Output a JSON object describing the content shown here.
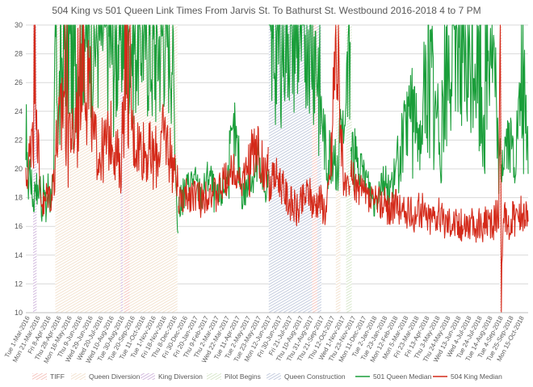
{
  "chart_data": {
    "type": "line",
    "title": "504 King vs 501 Queen Link Times From Jarvis St. To Bathurst St. Westbound 2016-2018 4 to 7 PM",
    "xlabel": "",
    "ylabel": "",
    "ylim": [
      10,
      30
    ],
    "yticks": [
      10,
      12,
      14,
      16,
      18,
      20,
      22,
      24,
      26,
      28,
      30
    ],
    "x_range": [
      "2016-03-01",
      "2018-10-31"
    ],
    "x_tick_labels": [
      "Tue 1-Mar-2016",
      "Mon 21-Mar-2016",
      "Fri 8-Apr-2016",
      "Thu 28-Apr-2016",
      "Mon 16-May-2016",
      "Thu 9-Jun-2016",
      "Wed 29-Jun-2016",
      "Wed 20-Jul-2016",
      "Wed 10-Aug-2016",
      "Tue 30-Aug-2016",
      "Tue 20-Sep-2016",
      "Tue 11-Oct-2016",
      "Tue 1-Nov-2016",
      "Fri 18-Nov-2016",
      "Thu 8-Dec-2016",
      "Fri 30-Dec-2016",
      "Fri 20-Jan-2017",
      "Thu 9-Feb-2017",
      "Thu 2-Mar-2017",
      "Wed 22-Mar-2017",
      "Tue 11-Apr-2017",
      "Tue 2-May-2017",
      "Tue 23-May-2017",
      "Mon 12-Jun-2017",
      "Fri 30-Jun-2017",
      "Fri 21-Jul-2017",
      "Thu 10-Aug-2017",
      "Thu 31-Aug-2017",
      "Thu 21-Sep-2017",
      "Thu 12-Oct-2017",
      "Wed 1-Nov-2017",
      "Thu 23-Nov-2017",
      "Mon 11-Dec-2017",
      "Tue 2-Jan-2018",
      "Tue 23-Jan-2018",
      "Mon 12-Feb-2018",
      "Mon 5-Mar-2018",
      "Fri 23-Mar-2018",
      "Fri 13-Apr-2018",
      "Thu 3-May-2018",
      "Thu 24-May-2018",
      "Wed 13-Jun-2018",
      "Wed 4-Jul-2018",
      "Tue 24-Jul-2018",
      "Tue 14-Aug-2018",
      "Tue 4-Sep-2018",
      "Tue 25-Sep-2018",
      "Mon 15-Oct-2018"
    ],
    "periods": [
      {
        "name": "Queen Diversion",
        "start": "2016-04-27",
        "end": "2016-12-20",
        "color": "#f0dcc5",
        "pattern": "hatch"
      },
      {
        "name": "King Diversion",
        "start": "2016-03-15",
        "end": "2016-03-22",
        "color": "#c7a8d6",
        "pattern": "hatch"
      },
      {
        "name": "King Diversion",
        "start": "2016-09-01",
        "end": "2016-09-05",
        "color": "#c7a8d6",
        "pattern": "hatch"
      },
      {
        "name": "TIFF",
        "start": "2016-09-08",
        "end": "2016-09-18",
        "color": "#f2b8b0",
        "pattern": "hatch"
      },
      {
        "name": "Queen Construction",
        "start": "2017-06-15",
        "end": "2017-09-25",
        "color": "#b5bfd6",
        "pattern": "hatch"
      },
      {
        "name": "TIFF",
        "start": "2017-09-07",
        "end": "2017-09-17",
        "color": "#f2b8b0",
        "pattern": "hatch"
      },
      {
        "name": "Queen Diversion",
        "start": "2017-10-23",
        "end": "2017-11-01",
        "color": "#f0dcc5",
        "pattern": "hatch"
      },
      {
        "name": "Pilot Begins",
        "start": "2017-11-12",
        "end": "2017-11-23",
        "color": "#cfe2bf",
        "pattern": "hatch"
      },
      {
        "name": "TIFF",
        "start": "2018-09-06",
        "end": "2018-09-10",
        "color": "#f2b8b0",
        "pattern": "hatch"
      }
    ],
    "series": [
      {
        "name": "501 Queen Median",
        "color": "#1a9e3a",
        "segments": [
          {
            "start": "2016-03-01",
            "end": "2016-12-21",
            "points": [
              [
                "2016-03-01",
                19.6
              ],
              [
                "2016-03-03",
                25.3
              ],
              [
                "2016-03-05",
                18.0
              ],
              [
                "2016-03-08",
                20.5
              ],
              [
                "2016-03-12",
                18.8
              ],
              [
                "2016-03-16",
                17.6
              ],
              [
                "2016-03-20",
                19.4
              ],
              [
                "2016-03-24",
                18.0
              ],
              [
                "2016-03-28",
                19.5
              ],
              [
                "2016-04-01",
                17.2
              ],
              [
                "2016-04-05",
                18.6
              ],
              [
                "2016-04-09",
                16.9
              ],
              [
                "2016-04-13",
                18.9
              ],
              [
                "2016-04-17",
                17.8
              ],
              [
                "2016-04-21",
                19.0
              ],
              [
                "2016-04-24",
                18.2
              ],
              [
                "2016-04-27",
                30
              ],
              [
                "2016-05-04",
                24
              ],
              [
                "2016-05-15",
                30
              ],
              [
                "2016-06-01",
                27
              ],
              [
                "2016-06-20",
                30
              ],
              [
                "2016-07-10",
                29
              ],
              [
                "2016-08-01",
                30
              ],
              [
                "2016-08-20",
                28
              ],
              [
                "2016-09-05",
                30
              ],
              [
                "2016-09-25",
                29
              ],
              [
                "2016-10-15",
                30
              ],
              [
                "2016-11-05",
                28
              ],
              [
                "2016-11-25",
                30
              ],
              [
                "2016-12-10",
                29
              ],
              [
                "2016-12-18",
                18.5
              ],
              [
                "2016-12-21",
                15.6
              ]
            ]
          },
          {
            "start": "2016-12-22",
            "end": "2017-06-14",
            "points": [
              [
                "2016-12-22",
                17.2
              ],
              [
                "2017-01-05",
                18.5
              ],
              [
                "2017-01-20",
                19.4
              ],
              [
                "2017-02-05",
                18.0
              ],
              [
                "2017-02-20",
                19.8
              ],
              [
                "2017-03-05",
                17.6
              ],
              [
                "2017-03-25",
                19.0
              ],
              [
                "2017-04-10",
                22.4
              ],
              [
                "2017-04-25",
                18.2
              ],
              [
                "2017-05-10",
                19.0
              ],
              [
                "2017-05-25",
                20.5
              ],
              [
                "2017-06-05",
                18.4
              ],
              [
                "2017-06-14",
                19.2
              ]
            ]
          },
          {
            "start": "2017-06-15",
            "end": "2017-11-20",
            "points": [
              [
                "2017-06-15",
                30
              ],
              [
                "2017-07-01",
                28
              ],
              [
                "2017-07-20",
                30
              ],
              [
                "2017-08-10",
                29
              ],
              [
                "2017-08-31",
                30
              ],
              [
                "2017-09-15",
                28
              ],
              [
                "2017-09-25",
                24
              ],
              [
                "2017-10-05",
                20.5
              ],
              [
                "2017-10-20",
                21.7
              ],
              [
                "2017-10-27",
                19.4
              ],
              [
                "2017-11-01",
                23.8
              ],
              [
                "2017-11-10",
                21.5
              ],
              [
                "2017-11-20",
                30
              ]
            ]
          },
          {
            "start": "2017-11-21",
            "end": "2018-10-31",
            "points": [
              [
                "2017-11-21",
                21.5
              ],
              [
                "2017-12-05",
                20.0
              ],
              [
                "2017-12-20",
                19.5
              ],
              [
                "2018-01-05",
                17.6
              ],
              [
                "2018-01-20",
                19.4
              ],
              [
                "2018-02-05",
                18.6
              ],
              [
                "2018-02-20",
                20.2
              ],
              [
                "2018-03-05",
                22.4
              ],
              [
                "2018-03-20",
                24.5
              ],
              [
                "2018-04-05",
                22.0
              ],
              [
                "2018-04-20",
                26.8
              ],
              [
                "2018-05-05",
                23.5
              ],
              [
                "2018-05-20",
                25.0
              ],
              [
                "2018-06-05",
                27.8
              ],
              [
                "2018-06-20",
                30
              ],
              [
                "2018-07-05",
                26.0
              ],
              [
                "2018-07-20",
                28.0
              ],
              [
                "2018-08-05",
                24.0
              ],
              [
                "2018-08-20",
                30
              ],
              [
                "2018-09-05",
                20.0
              ],
              [
                "2018-09-20",
                22.0
              ],
              [
                "2018-10-05",
                20.5
              ],
              [
                "2018-10-20",
                26.0
              ],
              [
                "2018-10-31",
                21.0
              ]
            ]
          }
        ]
      },
      {
        "name": "504 King Median",
        "color": "#d42a1a",
        "segments": [
          {
            "start": "2016-03-01",
            "end": "2016-12-21",
            "points": [
              [
                "2016-03-01",
                19.0
              ],
              [
                "2016-03-08",
                20.5
              ],
              [
                "2016-03-15",
                24.5
              ],
              [
                "2016-03-20",
                30
              ],
              [
                "2016-03-24",
                22.5
              ],
              [
                "2016-03-28",
                18.6
              ],
              [
                "2016-04-05",
                17.2
              ],
              [
                "2016-04-12",
                18.4
              ],
              [
                "2016-04-20",
                18.0
              ],
              [
                "2016-04-27",
                21.0
              ],
              [
                "2016-05-15",
                26.0
              ],
              [
                "2016-06-01",
                21.5
              ],
              [
                "2016-06-20",
                30
              ],
              [
                "2016-07-10",
                22.0
              ],
              [
                "2016-07-25",
                21.0
              ],
              [
                "2016-08-15",
                22.5
              ],
              [
                "2016-09-01",
                19.5
              ],
              [
                "2016-09-10",
                30
              ],
              [
                "2016-09-25",
                22.0
              ],
              [
                "2016-10-15",
                21.5
              ],
              [
                "2016-11-05",
                20.5
              ],
              [
                "2016-11-25",
                22.5
              ],
              [
                "2016-12-10",
                20.5
              ],
              [
                "2016-12-21",
                19.0
              ]
            ]
          },
          {
            "start": "2016-12-22",
            "end": "2017-06-14",
            "points": [
              [
                "2016-12-22",
                17.6
              ],
              [
                "2017-01-05",
                18.0
              ],
              [
                "2017-01-20",
                18.4
              ],
              [
                "2017-02-05",
                17.8
              ],
              [
                "2017-02-20",
                18.6
              ],
              [
                "2017-03-05",
                18.0
              ],
              [
                "2017-03-25",
                19.4
              ],
              [
                "2017-04-10",
                20.0
              ],
              [
                "2017-04-25",
                19.0
              ],
              [
                "2017-05-10",
                20.4
              ],
              [
                "2017-05-25",
                21.5
              ],
              [
                "2017-06-05",
                19.5
              ],
              [
                "2017-06-14",
                20.2
              ]
            ]
          },
          {
            "start": "2017-06-15",
            "end": "2017-11-20",
            "points": [
              [
                "2017-06-15",
                18.8
              ],
              [
                "2017-07-01",
                19.6
              ],
              [
                "2017-07-20",
                18.0
              ],
              [
                "2017-08-10",
                17.0
              ],
              [
                "2017-08-31",
                18.5
              ],
              [
                "2017-09-10",
                17.4
              ],
              [
                "2017-09-20",
                18.0
              ],
              [
                "2017-10-05",
                17.0
              ],
              [
                "2017-10-15",
                21.0
              ],
              [
                "2017-10-23",
                30
              ],
              [
                "2017-10-31",
                24.0
              ],
              [
                "2017-11-10",
                18.5
              ],
              [
                "2017-11-20",
                18.0
              ]
            ]
          },
          {
            "start": "2017-11-21",
            "end": "2018-10-31",
            "points": [
              [
                "2017-11-21",
                19.5
              ],
              [
                "2017-12-05",
                18.5
              ],
              [
                "2017-12-20",
                18.0
              ],
              [
                "2018-01-05",
                17.6
              ],
              [
                "2018-01-20",
                17.8
              ],
              [
                "2018-02-05",
                17.2
              ],
              [
                "2018-02-20",
                17.4
              ],
              [
                "2018-03-05",
                17.0
              ],
              [
                "2018-03-20",
                16.8
              ],
              [
                "2018-04-05",
                17.2
              ],
              [
                "2018-04-20",
                16.6
              ],
              [
                "2018-05-05",
                17.0
              ],
              [
                "2018-05-20",
                16.4
              ],
              [
                "2018-06-05",
                16.6
              ],
              [
                "2018-06-20",
                16.0
              ],
              [
                "2018-07-05",
                16.4
              ],
              [
                "2018-07-20",
                15.8
              ],
              [
                "2018-08-05",
                16.2
              ],
              [
                "2018-08-20",
                16.0
              ],
              [
                "2018-09-04",
                17.0
              ],
              [
                "2018-09-07",
                30
              ],
              [
                "2018-09-09",
                10
              ],
              [
                "2018-09-12",
                16.6
              ],
              [
                "2018-09-25",
                16.2
              ],
              [
                "2018-10-10",
                16.8
              ],
              [
                "2018-10-20",
                17.0
              ],
              [
                "2018-10-31",
                16.8
              ]
            ]
          }
        ]
      }
    ],
    "legend": {
      "placement": "bottom",
      "items": [
        {
          "label": "TIFF",
          "kind": "area",
          "color": "#f2b8b0"
        },
        {
          "label": "Queen Diversion",
          "kind": "area",
          "color": "#f0dcc5"
        },
        {
          "label": "King Diversion",
          "kind": "area",
          "color": "#c7a8d6"
        },
        {
          "label": "Pilot Begins",
          "kind": "area",
          "color": "#cfe2bf"
        },
        {
          "label": "Queen Construction",
          "kind": "area",
          "color": "#b5bfd6"
        },
        {
          "label": "501 Queen Median",
          "kind": "line",
          "color": "#1a9e3a"
        },
        {
          "label": "504 King Median",
          "kind": "line",
          "color": "#d42a1a"
        }
      ]
    },
    "grid": "horizontal"
  }
}
